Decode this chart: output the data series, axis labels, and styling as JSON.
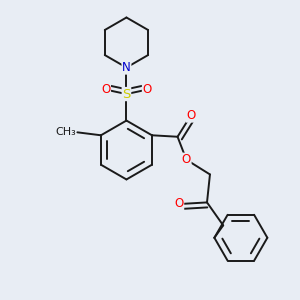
{
  "background_color": "#e8edf4",
  "bond_color": "#1a1a1a",
  "bond_width": 1.4,
  "atom_colors": {
    "O": "#ff0000",
    "N": "#0000cc",
    "S": "#cccc00",
    "C": "#1a1a1a"
  },
  "font_size_atom": 8.5
}
